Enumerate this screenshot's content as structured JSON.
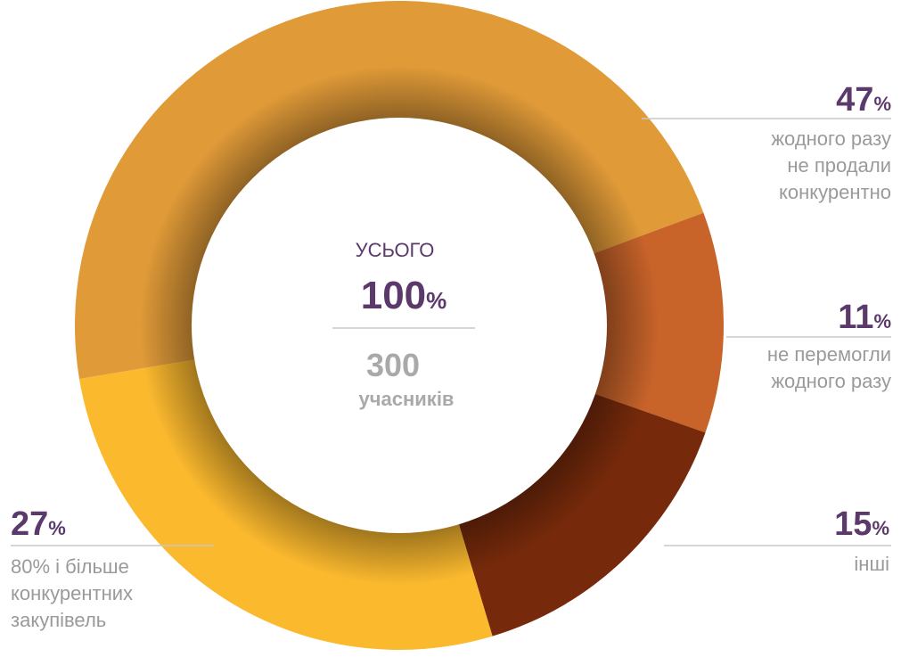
{
  "chart_data": {
    "type": "donut",
    "values": [
      47,
      11,
      15,
      27
    ],
    "unit": "%",
    "categories": [
      [
        "жодного разу",
        "не продали",
        "конкурентно"
      ],
      [
        "не перемогли",
        "жодного разу"
      ],
      [
        "інші"
      ],
      [
        "80% і більше",
        "конкурентних",
        "закупівель"
      ]
    ],
    "colors": [
      "#e09a38",
      "#c8632a",
      "#772a0b",
      "#fbb92e"
    ],
    "center": {
      "title": "УСЬОГО",
      "total": 100,
      "count": 300,
      "count_label": "учасників"
    }
  }
}
